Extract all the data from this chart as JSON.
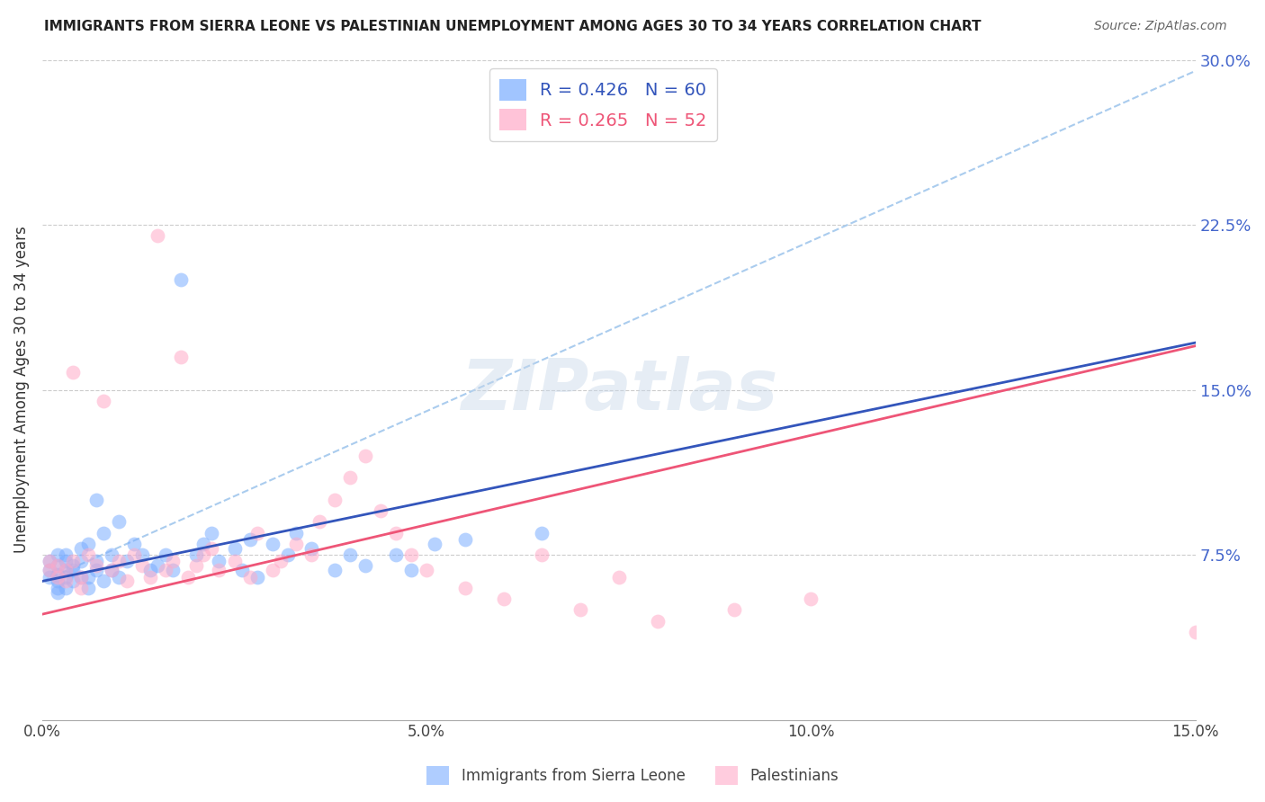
{
  "title": "IMMIGRANTS FROM SIERRA LEONE VS PALESTINIAN UNEMPLOYMENT AMONG AGES 30 TO 34 YEARS CORRELATION CHART",
  "source": "Source: ZipAtlas.com",
  "ylabel": "Unemployment Among Ages 30 to 34 years",
  "xlim": [
    0.0,
    0.15
  ],
  "ylim": [
    0.0,
    0.3
  ],
  "yticks_right": [
    0.075,
    0.15,
    0.225,
    0.3
  ],
  "ytick_labels_right": [
    "7.5%",
    "15.0%",
    "22.5%",
    "30.0%"
  ],
  "xticks": [
    0.0,
    0.05,
    0.1,
    0.15
  ],
  "legend_blue_label": "R = 0.426   N = 60",
  "legend_pink_label": "R = 0.265   N = 52",
  "blue_scatter_color": "#7aadff",
  "pink_scatter_color": "#ffaac8",
  "blue_line_color": "#3355bb",
  "pink_line_color": "#ee5577",
  "dashed_line_color": "#aaccee",
  "watermark": "ZIPatlas",
  "legend_blue_text_color": "#3355bb",
  "legend_pink_text_color": "#ee5577",
  "right_axis_color": "#4466cc",
  "sierra_leone_x": [
    0.001,
    0.001,
    0.001,
    0.002,
    0.002,
    0.002,
    0.002,
    0.002,
    0.002,
    0.003,
    0.003,
    0.003,
    0.003,
    0.003,
    0.004,
    0.004,
    0.004,
    0.005,
    0.005,
    0.005,
    0.006,
    0.006,
    0.006,
    0.007,
    0.007,
    0.007,
    0.008,
    0.008,
    0.009,
    0.009,
    0.01,
    0.01,
    0.011,
    0.012,
    0.013,
    0.014,
    0.015,
    0.016,
    0.017,
    0.018,
    0.02,
    0.021,
    0.022,
    0.023,
    0.025,
    0.026,
    0.027,
    0.028,
    0.03,
    0.032,
    0.033,
    0.035,
    0.038,
    0.04,
    0.042,
    0.046,
    0.048,
    0.051,
    0.055,
    0.065
  ],
  "sierra_leone_y": [
    0.065,
    0.068,
    0.072,
    0.06,
    0.063,
    0.066,
    0.07,
    0.075,
    0.058,
    0.065,
    0.068,
    0.072,
    0.06,
    0.075,
    0.063,
    0.068,
    0.07,
    0.065,
    0.072,
    0.078,
    0.06,
    0.065,
    0.08,
    0.068,
    0.072,
    0.1,
    0.063,
    0.085,
    0.068,
    0.075,
    0.065,
    0.09,
    0.072,
    0.08,
    0.075,
    0.068,
    0.07,
    0.075,
    0.068,
    0.2,
    0.075,
    0.08,
    0.085,
    0.072,
    0.078,
    0.068,
    0.082,
    0.065,
    0.08,
    0.075,
    0.085,
    0.078,
    0.068,
    0.075,
    0.07,
    0.075,
    0.068,
    0.08,
    0.082,
    0.085
  ],
  "palestinian_x": [
    0.001,
    0.001,
    0.002,
    0.002,
    0.003,
    0.003,
    0.004,
    0.004,
    0.005,
    0.005,
    0.006,
    0.007,
    0.008,
    0.009,
    0.01,
    0.011,
    0.012,
    0.013,
    0.014,
    0.015,
    0.016,
    0.017,
    0.018,
    0.019,
    0.02,
    0.021,
    0.022,
    0.023,
    0.025,
    0.027,
    0.028,
    0.03,
    0.031,
    0.033,
    0.035,
    0.036,
    0.038,
    0.04,
    0.042,
    0.044,
    0.046,
    0.048,
    0.05,
    0.055,
    0.06,
    0.065,
    0.07,
    0.075,
    0.08,
    0.09,
    0.1,
    0.15
  ],
  "palestinian_y": [
    0.068,
    0.072,
    0.065,
    0.07,
    0.063,
    0.068,
    0.072,
    0.158,
    0.065,
    0.06,
    0.075,
    0.07,
    0.145,
    0.068,
    0.072,
    0.063,
    0.075,
    0.07,
    0.065,
    0.22,
    0.068,
    0.072,
    0.165,
    0.065,
    0.07,
    0.075,
    0.078,
    0.068,
    0.072,
    0.065,
    0.085,
    0.068,
    0.072,
    0.08,
    0.075,
    0.09,
    0.1,
    0.11,
    0.12,
    0.095,
    0.085,
    0.075,
    0.068,
    0.06,
    0.055,
    0.075,
    0.05,
    0.065,
    0.045,
    0.05,
    0.055,
    0.04
  ],
  "blue_trend_x0": 0.0,
  "blue_trend_y0": 0.063,
  "blue_trend_x1": 0.065,
  "blue_trend_y1": 0.11,
  "pink_trend_x0": 0.0,
  "pink_trend_y0": 0.048,
  "pink_trend_x1": 0.15,
  "pink_trend_y1": 0.17,
  "dash_trend_x0": 0.0,
  "dash_trend_y0": 0.063,
  "dash_trend_x1": 0.15,
  "dash_trend_y1": 0.295
}
